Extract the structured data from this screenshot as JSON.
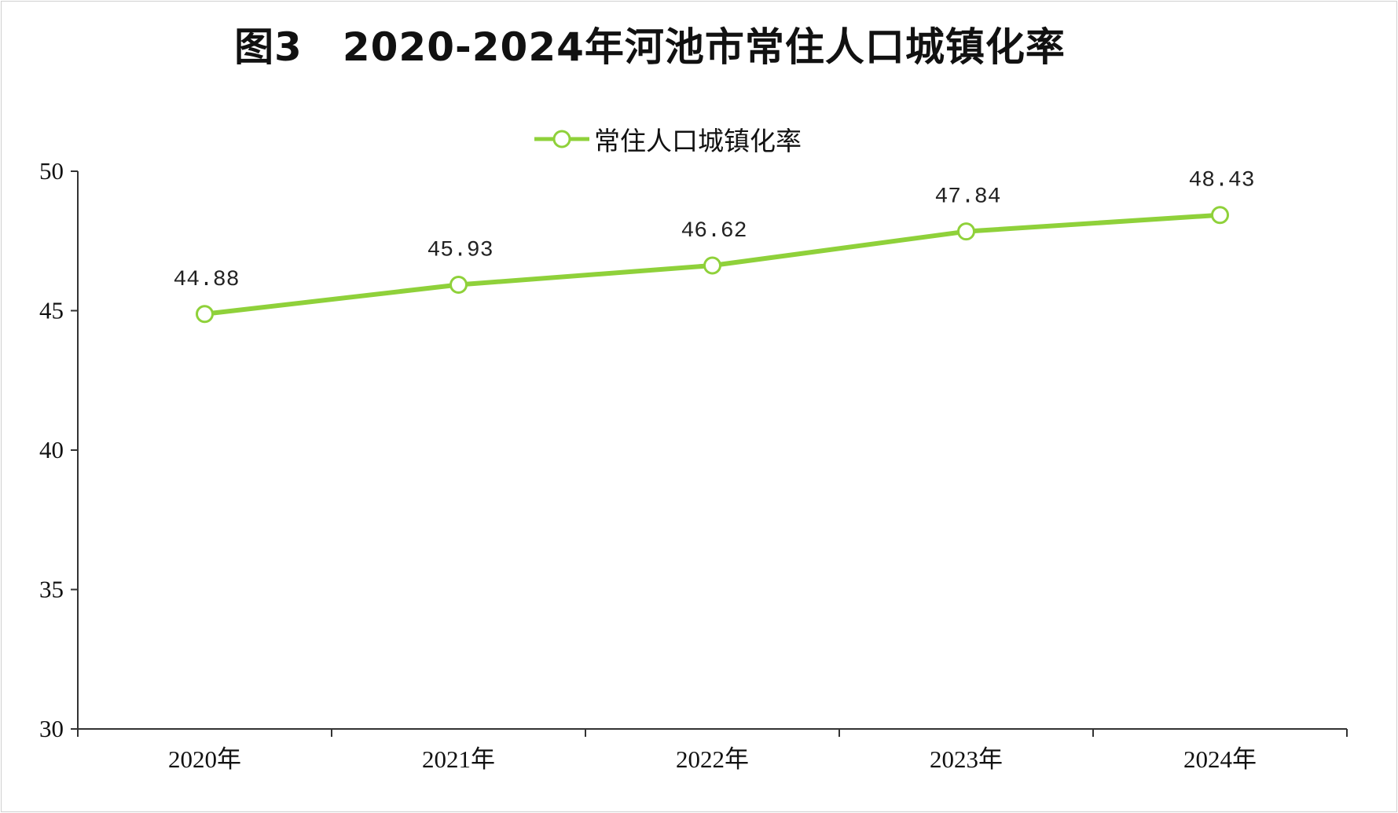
{
  "colors": {
    "line": "#8fd13a",
    "marker_fill": "#ffffff",
    "axis": "#333333",
    "text": "#111111"
  },
  "chart_data": {
    "type": "line",
    "title": "图3　2020-2024年河池市常住人口城镇化率",
    "categories": [
      "2020年",
      "2021年",
      "2022年",
      "2023年",
      "2024年"
    ],
    "series": [
      {
        "name": "常住人口城镇化率",
        "values": [
          44.88,
          45.93,
          46.62,
          47.84,
          48.43
        ]
      }
    ],
    "data_labels": [
      "44.88",
      "45.93",
      "46.62",
      "47.84",
      "48.43"
    ],
    "y_ticks": [
      30,
      35,
      40,
      45,
      50
    ],
    "ylim": [
      30,
      50
    ],
    "grid": false,
    "legend": "top-center",
    "xlabel": "",
    "ylabel": ""
  }
}
